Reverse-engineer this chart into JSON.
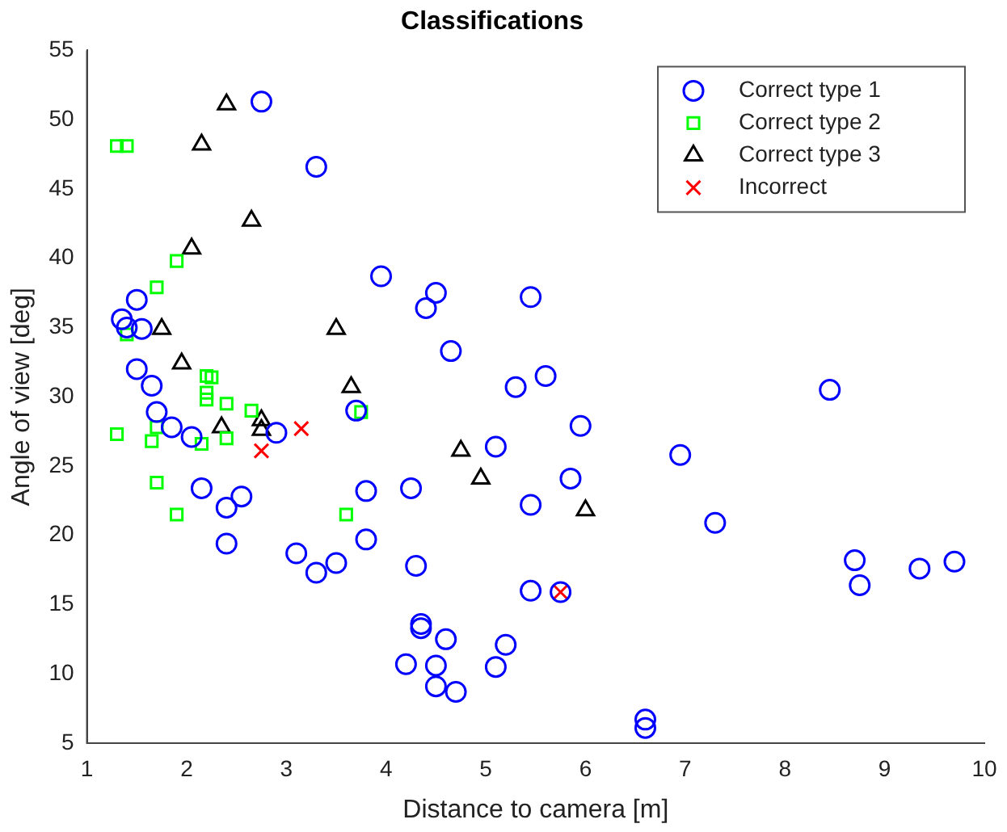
{
  "chart_data": {
    "type": "scatter",
    "title": "Classifications",
    "xlabel": "Distance to camera [m]",
    "ylabel": "Angle of view [deg]",
    "xlim": [
      1,
      10
    ],
    "xticks": [
      1,
      2,
      3,
      4,
      5,
      6,
      7,
      8,
      9,
      10
    ],
    "ylim": [
      5,
      55
    ],
    "yticks": [
      5,
      10,
      15,
      20,
      25,
      30,
      35,
      40,
      45,
      50,
      55
    ],
    "grid": false,
    "legend": "top right",
    "series": [
      {
        "name": "Correct type 1",
        "color": "#0000ff",
        "marker": "circle",
        "x": [
          2.75,
          3.3,
          1.35,
          1.4,
          1.5,
          1.55,
          1.5,
          1.65,
          1.7,
          1.85,
          2.05,
          2.15,
          2.4,
          2.4,
          2.55,
          2.9,
          3.1,
          3.3,
          3.5,
          3.7,
          3.8,
          3.8,
          3.95,
          4.4,
          4.5,
          4.65,
          4.25,
          4.3,
          4.35,
          4.35,
          4.2,
          4.5,
          4.5,
          4.6,
          4.7,
          5.1,
          5.3,
          5.45,
          5.6,
          5.45,
          5.2,
          5.1,
          5.45,
          5.75,
          5.85,
          5.95,
          6.95,
          7.3,
          6.6,
          6.6,
          8.45,
          8.7,
          8.75,
          9.35,
          9.7
        ],
        "values": [
          51.3,
          46.6,
          35.6,
          35,
          37,
          34.9,
          32,
          30.8,
          28.9,
          27.8,
          27.1,
          23.4,
          22,
          19.4,
          22.8,
          27.4,
          18.7,
          17.3,
          18,
          29,
          23.2,
          19.7,
          38.7,
          36.4,
          37.5,
          33.3,
          23.4,
          17.8,
          13.6,
          13.3,
          10.7,
          10.6,
          9.1,
          12.5,
          8.7,
          26.4,
          30.7,
          37.2,
          31.5,
          22.2,
          12.1,
          10.5,
          16,
          15.9,
          24.1,
          27.9,
          25.8,
          20.9,
          6.7,
          6.1,
          30.5,
          18.2,
          16.4,
          17.6,
          18.1
        ]
      },
      {
        "name": "Correct type 2",
        "color": "#00ff00",
        "marker": "square",
        "x": [
          1.3,
          1.4,
          1.9,
          1.7,
          1.4,
          1.3,
          1.65,
          1.7,
          1.7,
          1.9,
          2.15,
          2.2,
          2.2,
          2.25,
          2.2,
          2.4,
          2.4,
          2.65,
          3.6,
          3.75
        ],
        "values": [
          48.1,
          48.1,
          39.8,
          37.9,
          34.5,
          27.3,
          26.8,
          27.8,
          23.8,
          21.5,
          26.6,
          29.8,
          30.3,
          31.4,
          31.5,
          29.5,
          27,
          29,
          21.5,
          28.9
        ]
      },
      {
        "name": "Correct type 3",
        "color": "#000000",
        "marker": "triangle",
        "x": [
          2.4,
          2.15,
          2.65,
          2.05,
          1.75,
          1.95,
          3.5,
          3.65,
          2.35,
          2.75,
          2.75,
          4.75,
          4.95,
          6
        ],
        "values": [
          51.1,
          48.2,
          42.7,
          40.7,
          34.9,
          32.4,
          34.9,
          30.7,
          27.8,
          28.3,
          27.6,
          26.1,
          24.1,
          21.8
        ]
      },
      {
        "name": "Incorrect",
        "color": "#ff0000",
        "marker": "cross",
        "x": [
          2.75,
          3.15,
          5.75
        ],
        "values": [
          26.1,
          27.7,
          15.9
        ]
      }
    ]
  }
}
